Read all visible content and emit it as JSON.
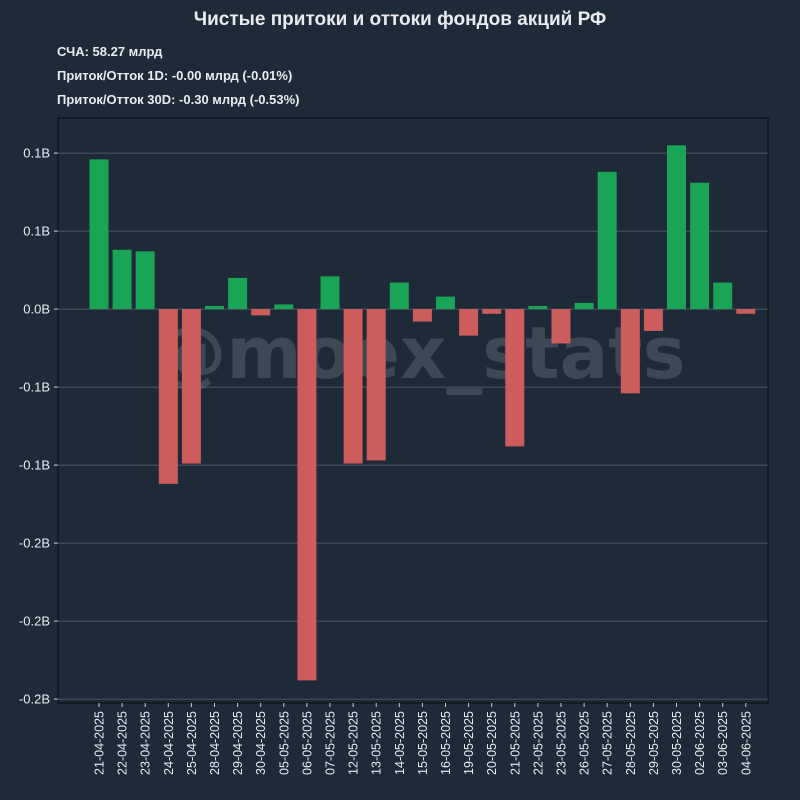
{
  "header": {
    "title": "Чистые притоки и оттоки фондов акций РФ",
    "stats": [
      "СЧА: 58.27 млрд",
      "Приток/Отток 1D: -0.00 млрд (-0.01%)",
      "Приток/Отток 30D: -0.30 млрд (-0.53%)"
    ]
  },
  "watermark": "@moex_stats",
  "colors": {
    "positive": "#1aa456",
    "negative": "#cd5c5c",
    "background": "#1f2a38",
    "plot_background": "#1f2a38"
  },
  "chart_data": {
    "type": "bar",
    "title": "Чистые притоки и оттоки фондов акций РФ",
    "xlabel": "",
    "ylabel": "",
    "ylim": [
      -0.2525,
      0.1225
    ],
    "yticks": [
      0.1,
      0.05,
      0.0,
      -0.05,
      -0.1,
      -0.15,
      -0.2,
      -0.25
    ],
    "ytick_labels": [
      "0.1B",
      "0.1B",
      "0.0B",
      "-0.1B",
      "-0.1B",
      "-0.2B",
      "-0.2B",
      "-0.2B"
    ],
    "grid": true,
    "categories": [
      "21-04-2025",
      "22-04-2025",
      "23-04-2025",
      "24-04-2025",
      "25-04-2025",
      "28-04-2025",
      "29-04-2025",
      "30-04-2025",
      "05-05-2025",
      "06-05-2025",
      "07-05-2025",
      "12-05-2025",
      "13-05-2025",
      "14-05-2025",
      "15-05-2025",
      "16-05-2025",
      "19-05-2025",
      "20-05-2025",
      "21-05-2025",
      "22-05-2025",
      "23-05-2025",
      "26-05-2025",
      "27-05-2025",
      "28-05-2025",
      "29-05-2025",
      "30-05-2025",
      "02-06-2025",
      "03-06-2025",
      "04-06-2025"
    ],
    "values": [
      0.096,
      0.038,
      0.037,
      -0.112,
      -0.099,
      0.002,
      0.02,
      -0.004,
      0.003,
      -0.238,
      0.021,
      -0.099,
      -0.097,
      0.017,
      -0.008,
      0.008,
      -0.017,
      -0.003,
      -0.088,
      0.002,
      -0.022,
      0.004,
      0.088,
      -0.054,
      -0.014,
      0.105,
      0.081,
      0.017,
      -0.003
    ]
  }
}
